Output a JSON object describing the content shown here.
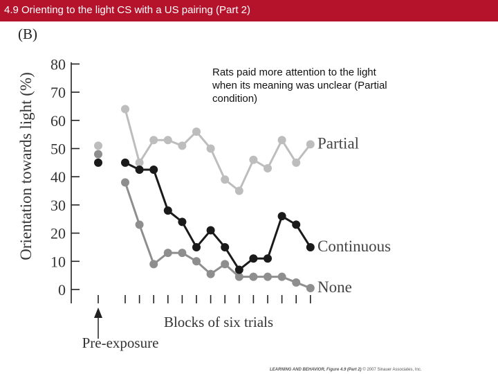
{
  "header": {
    "title": "4.9 Orienting to the light CS with a US pairing (Part 2)"
  },
  "panel_label": "(B)",
  "annotation": "Rats paid more attention to the light when its meaning was unclear (Partial condition)",
  "arrow_label": "Pre-exposure",
  "credit": {
    "book": "LEARNING AND BEHAVIOR, Figure 4.9 (Part 2)",
    "rest": "© 2007 Sinauer Associates, Inc."
  },
  "colors": {
    "title_bar": "#b5122b",
    "partial": "#bdbdbd",
    "continuous": "#1a1a1a",
    "none": "#8e8e8e"
  },
  "chart_data": {
    "type": "line",
    "xlabel": "Blocks of six trials",
    "ylabel": "Orientation towards light (%)",
    "ylim": [
      0,
      80
    ],
    "yticks": [
      0,
      10,
      20,
      30,
      40,
      50,
      60,
      70,
      80
    ],
    "grid": false,
    "legend": "labels at right end of each line",
    "x_block_ticks": [
      1,
      2,
      3,
      4,
      5,
      6,
      7,
      8,
      9,
      10,
      11,
      12,
      13,
      14
    ],
    "pre_exposure": [
      {
        "series": "Partial",
        "value": 51
      },
      {
        "series": "None",
        "value": 48
      },
      {
        "series": "Continuous",
        "value": 45
      }
    ],
    "series": [
      {
        "name": "Partial",
        "color": "#bdbdbd",
        "values": [
          64,
          45,
          53,
          53,
          51,
          56,
          50,
          39,
          35,
          46,
          43,
          53,
          45,
          51.5
        ]
      },
      {
        "name": "Continuous",
        "color": "#1a1a1a",
        "values": [
          45,
          42.5,
          42.5,
          28,
          24,
          15,
          21,
          15,
          7,
          11,
          11,
          26,
          23,
          15
        ]
      },
      {
        "name": "None",
        "color": "#8e8e8e",
        "values": [
          38,
          23,
          9,
          13,
          13,
          10,
          5.5,
          9,
          4.5,
          4.5,
          4.5,
          4.5,
          2.5,
          0.5
        ]
      }
    ]
  }
}
